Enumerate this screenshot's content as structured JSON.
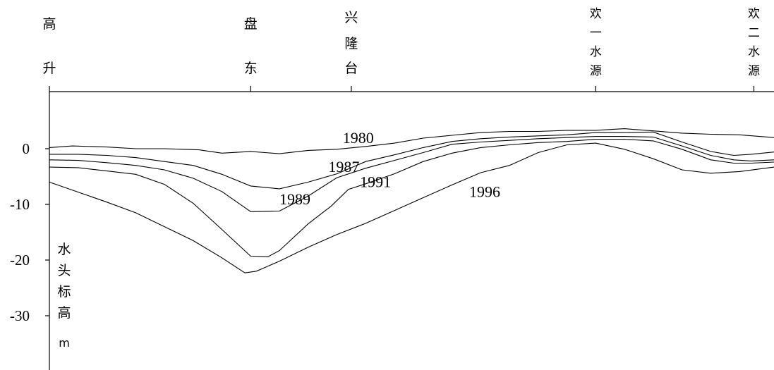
{
  "chart_data": {
    "type": "line",
    "stations": [
      {
        "name": [
          "高",
          "升"
        ],
        "x": 0
      },
      {
        "name": [
          "盘",
          "东"
        ],
        "x": 3.5
      },
      {
        "name": [
          "兴",
          "隆",
          "台"
        ],
        "x": 5.25
      },
      {
        "name": [
          "欢",
          "一",
          "水",
          "源"
        ],
        "x": 9.5
      },
      {
        "name": [
          "欢",
          "二",
          "水",
          "源"
        ],
        "x": 12.25
      }
    ],
    "ylabel": [
      "水",
      "头",
      "标",
      "高",
      "m"
    ],
    "yticks": [
      0,
      -10,
      -20,
      -30
    ],
    "ylim": [
      -40,
      10
    ],
    "xlim": [
      0,
      12.6
    ],
    "series": [
      {
        "name": "1980",
        "x": [
          0,
          0.4,
          1.0,
          1.5,
          2.0,
          2.6,
          3.0,
          3.5,
          4.0,
          4.5,
          5.0,
          5.5,
          6.0,
          6.5,
          7.0,
          7.5,
          8.0,
          8.5,
          9.0,
          9.5,
          10.0,
          10.5,
          11.0,
          11.5,
          12.0,
          12.6
        ],
        "y": [
          0.2,
          0.5,
          0.3,
          0.0,
          0.0,
          -0.2,
          -0.8,
          -0.5,
          -0.9,
          -0.3,
          -0.1,
          0.4,
          1.0,
          1.9,
          2.4,
          2.9,
          3.1,
          3.1,
          3.3,
          3.3,
          3.6,
          3.2,
          2.8,
          2.6,
          2.5,
          2.0
        ]
      },
      {
        "name": "1987",
        "x": [
          0,
          0.5,
          1.0,
          1.5,
          2.0,
          2.5,
          3.0,
          3.5,
          4.0,
          4.5,
          5.0,
          5.5,
          6.0,
          6.5,
          7.0,
          7.5,
          8.0,
          8.5,
          9.0,
          9.5,
          10.0,
          10.5,
          11.0,
          11.5,
          11.9,
          12.2,
          12.6
        ],
        "y": [
          -1.0,
          -1.0,
          -1.2,
          -1.6,
          -2.3,
          -3.0,
          -4.6,
          -6.7,
          -7.2,
          -6.0,
          -4.5,
          -2.3,
          -1.1,
          0.2,
          1.3,
          1.8,
          2.1,
          2.3,
          2.5,
          2.9,
          2.9,
          3.0,
          1.2,
          -0.5,
          -1.2,
          -1.0,
          -0.6
        ]
      },
      {
        "name": "1989",
        "x": [
          0,
          0.5,
          1.0,
          1.5,
          2.0,
          2.5,
          3.0,
          3.5,
          4.0,
          4.5,
          5.0,
          5.5,
          6.0,
          6.5,
          7.0,
          7.5,
          8.0,
          8.5,
          9.0,
          9.5,
          10.0,
          10.5,
          11.0,
          11.5,
          11.9,
          12.2,
          12.6
        ],
        "y": [
          -2.0,
          -2.1,
          -2.5,
          -3.0,
          -3.8,
          -5.3,
          -7.7,
          -11.3,
          -11.2,
          -8.5,
          -5.2,
          -3.5,
          -2.1,
          -0.7,
          0.8,
          1.2,
          1.5,
          1.8,
          2.0,
          2.2,
          2.2,
          2.1,
          0.5,
          -1.2,
          -2.0,
          -2.2,
          -2.0
        ]
      },
      {
        "name": "1991",
        "x": [
          0,
          0.5,
          1.0,
          1.5,
          2.0,
          2.5,
          3.0,
          3.5,
          3.8,
          4.0,
          4.5,
          4.9,
          5.2,
          5.5,
          6.0,
          6.5,
          7.0,
          7.5,
          8.0,
          8.5,
          9.0,
          9.5,
          10.0,
          10.5,
          11.0,
          11.5,
          11.9,
          12.2,
          12.6
        ],
        "y": [
          -3.3,
          -3.4,
          -4.0,
          -4.6,
          -6.4,
          -9.8,
          -14.5,
          -19.3,
          -19.4,
          -18.3,
          -13.5,
          -10.3,
          -7.3,
          -6.3,
          -4.5,
          -2.3,
          -0.8,
          0.2,
          0.7,
          1.1,
          1.3,
          1.7,
          1.7,
          1.4,
          -0.1,
          -2.0,
          -2.6,
          -2.6,
          -2.4
        ]
      },
      {
        "name": "1996",
        "x": [
          0,
          0.5,
          1.0,
          1.5,
          2.0,
          2.5,
          3.0,
          3.4,
          3.6,
          4.0,
          4.5,
          5.0,
          5.5,
          6.0,
          6.5,
          7.0,
          7.5,
          8.0,
          8.5,
          9.0,
          9.5,
          10.0,
          10.5,
          11.0,
          11.5,
          12.0,
          12.6
        ],
        "y": [
          -6.0,
          -7.8,
          -9.6,
          -11.5,
          -14.0,
          -16.5,
          -19.6,
          -22.3,
          -22.0,
          -20.2,
          -17.7,
          -15.4,
          -13.4,
          -11.1,
          -8.8,
          -6.5,
          -4.3,
          -3.0,
          -0.7,
          0.7,
          1.0,
          -0.1,
          -1.8,
          -3.8,
          -4.4,
          -4.1,
          -3.3
        ]
      }
    ],
    "annotations": [
      {
        "text": "1980",
        "x": 5.1,
        "y": 1.0
      },
      {
        "text": "1987",
        "x": 4.85,
        "y": -4.2
      },
      {
        "text": "1989",
        "x": 4.0,
        "y": -10.0
      },
      {
        "text": "1991",
        "x": 5.4,
        "y": -6.9
      },
      {
        "text": "1996",
        "x": 7.3,
        "y": -8.7
      }
    ]
  }
}
